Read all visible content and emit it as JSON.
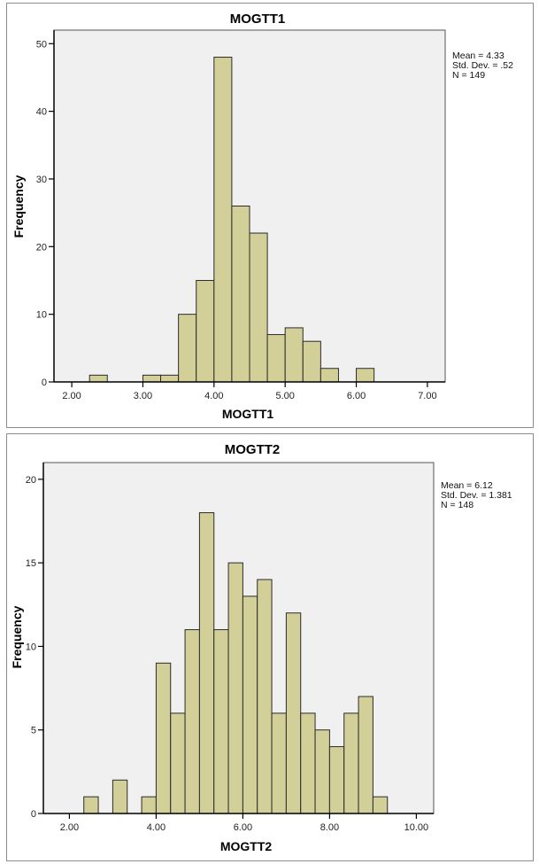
{
  "chart_data": [
    {
      "type": "bar",
      "subtype": "histogram",
      "title": "MOGTT1",
      "xlabel": "MOGTT1",
      "ylabel": "Frequency",
      "xlim": [
        1.75,
        7.25
      ],
      "ylim": [
        0,
        52
      ],
      "x_ticks": [
        "2.00",
        "3.00",
        "4.00",
        "5.00",
        "6.00",
        "7.00"
      ],
      "x_tick_values": [
        2,
        3,
        4,
        5,
        6,
        7
      ],
      "y_ticks": [
        "0",
        "10",
        "20",
        "30",
        "40",
        "50"
      ],
      "y_tick_values": [
        0,
        10,
        20,
        30,
        40,
        50
      ],
      "bin_width": 0.25,
      "bins": [
        {
          "start": 2.25,
          "end": 2.5,
          "count": 1
        },
        {
          "start": 3.0,
          "end": 3.25,
          "count": 1
        },
        {
          "start": 3.25,
          "end": 3.5,
          "count": 1
        },
        {
          "start": 3.5,
          "end": 3.75,
          "count": 10
        },
        {
          "start": 3.75,
          "end": 4.0,
          "count": 15
        },
        {
          "start": 4.0,
          "end": 4.25,
          "count": 48
        },
        {
          "start": 4.25,
          "end": 4.5,
          "count": 26
        },
        {
          "start": 4.5,
          "end": 4.75,
          "count": 22
        },
        {
          "start": 4.75,
          "end": 5.0,
          "count": 7
        },
        {
          "start": 5.0,
          "end": 5.25,
          "count": 8
        },
        {
          "start": 5.25,
          "end": 5.5,
          "count": 6
        },
        {
          "start": 5.5,
          "end": 5.75,
          "count": 2
        },
        {
          "start": 6.0,
          "end": 6.25,
          "count": 2
        }
      ],
      "stats": [
        "Mean = 4.33",
        "Std. Dev. = .52",
        "N = 149"
      ],
      "grid": false,
      "bar_color": "#d3cf98",
      "legend_position": "right"
    },
    {
      "type": "bar",
      "subtype": "histogram",
      "title": "MOGTT2",
      "xlabel": "MOGTT2",
      "ylabel": "Frequency",
      "xlim": [
        1.4,
        10.4
      ],
      "ylim": [
        0,
        21
      ],
      "x_ticks": [
        "2.00",
        "4.00",
        "6.00",
        "8.00",
        "10.00"
      ],
      "x_tick_values": [
        2,
        4,
        6,
        8,
        10
      ],
      "y_ticks": [
        "0",
        "5",
        "10",
        "15",
        "20"
      ],
      "y_tick_values": [
        0,
        5,
        10,
        15,
        20
      ],
      "bin_width": 0.3333,
      "bins": [
        {
          "start": 2.3333,
          "end": 2.6667,
          "count": 1
        },
        {
          "start": 3.0,
          "end": 3.3333,
          "count": 2
        },
        {
          "start": 3.6667,
          "end": 4.0,
          "count": 1
        },
        {
          "start": 4.0,
          "end": 4.3333,
          "count": 9
        },
        {
          "start": 4.3333,
          "end": 4.6667,
          "count": 6
        },
        {
          "start": 4.6667,
          "end": 5.0,
          "count": 11
        },
        {
          "start": 5.0,
          "end": 5.3333,
          "count": 18
        },
        {
          "start": 5.3333,
          "end": 5.6667,
          "count": 11
        },
        {
          "start": 5.6667,
          "end": 6.0,
          "count": 15
        },
        {
          "start": 6.0,
          "end": 6.3333,
          "count": 13
        },
        {
          "start": 6.3333,
          "end": 6.6667,
          "count": 14
        },
        {
          "start": 6.6667,
          "end": 7.0,
          "count": 6
        },
        {
          "start": 7.0,
          "end": 7.3333,
          "count": 12
        },
        {
          "start": 7.3333,
          "end": 7.6667,
          "count": 6
        },
        {
          "start": 7.6667,
          "end": 8.0,
          "count": 5
        },
        {
          "start": 8.0,
          "end": 8.3333,
          "count": 4
        },
        {
          "start": 8.3333,
          "end": 8.6667,
          "count": 6
        },
        {
          "start": 8.6667,
          "end": 9.0,
          "count": 7
        },
        {
          "start": 9.0,
          "end": 9.3333,
          "count": 1
        }
      ],
      "stats": [
        "Mean = 6.12",
        "Std. Dev. = 1.381",
        "N = 148"
      ],
      "grid": false,
      "bar_color": "#d3cf98",
      "legend_position": "right"
    }
  ]
}
